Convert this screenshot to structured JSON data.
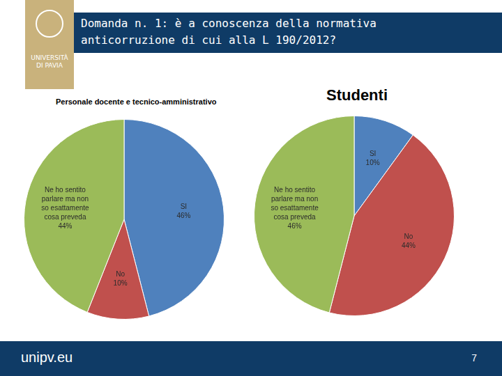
{
  "slide": {
    "title": "Domanda n. 1: è a conoscenza della normativa anticorruzione di cui alla L 190/2012?",
    "logo": [
      "UNIVERSITÀ",
      "DI PAVIA"
    ],
    "footer": "unipv.eu",
    "page": 7
  },
  "chart_data": [
    {
      "type": "pie",
      "title": "Personale docente e tecnico-amministrativo",
      "categories": [
        "SI",
        "No",
        "Ne ho sentito parlare ma non so esattamente cosa preveda"
      ],
      "values": [
        46,
        10,
        44
      ],
      "value_labels": [
        "46%",
        "10%",
        "44%"
      ],
      "colors": [
        "#4f81bd",
        "#c0504d",
        "#9bbb59"
      ],
      "data_labels": true
    },
    {
      "type": "pie",
      "title": "Studenti",
      "categories": [
        "SI",
        "No",
        "Ne ho sentito parlare ma non so esattamente cosa preveda"
      ],
      "values": [
        10,
        44,
        46
      ],
      "value_labels": [
        "10%",
        "44%",
        "46%"
      ],
      "colors": [
        "#4f81bd",
        "#c0504d",
        "#9bbb59"
      ],
      "data_labels": true
    }
  ]
}
